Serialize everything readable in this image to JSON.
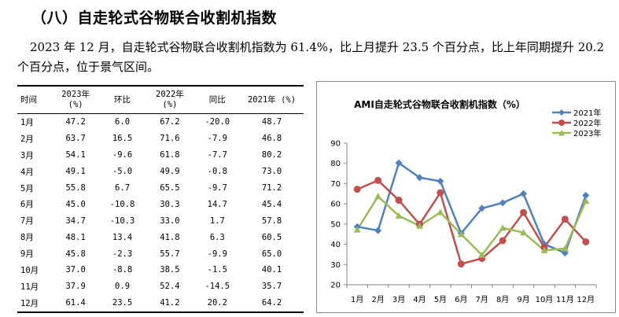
{
  "section": {
    "heading": "（八）自走轮式谷物联合收割机指数",
    "paragraph": "2023 年 12 月，自走轮式谷物联合收割机指数为 61.4%，比上月提升 23.5 个百分点，比上年同期提升 20.2 个百分点，位于景气区间。"
  },
  "table": {
    "headers": [
      {
        "line1": "时间",
        "line2": ""
      },
      {
        "line1": "2023年",
        "line2": "(%)"
      },
      {
        "line1": "环比",
        "line2": ""
      },
      {
        "line1": "2022年",
        "line2": "(%)"
      },
      {
        "line1": "同比",
        "line2": ""
      },
      {
        "line1": "2021年 (%)",
        "line2": ""
      }
    ],
    "rows": [
      [
        "1月",
        "47.2",
        "6.0",
        "67.2",
        "-20.0",
        "48.7"
      ],
      [
        "2月",
        "63.7",
        "16.5",
        "71.6",
        "-7.9",
        "46.8"
      ],
      [
        "3月",
        "54.1",
        "-9.6",
        "61.8",
        "-7.7",
        "80.2"
      ],
      [
        "4月",
        "49.1",
        "-5.0",
        "49.9",
        "-0.8",
        "73.0"
      ],
      [
        "5月",
        "55.8",
        "6.7",
        "65.5",
        "-9.7",
        "71.2"
      ],
      [
        "6月",
        "45.0",
        "-10.8",
        "30.3",
        "14.7",
        "45.4"
      ],
      [
        "7月",
        "34.7",
        "-10.3",
        "33.0",
        "1.7",
        "57.8"
      ],
      [
        "8月",
        "48.1",
        "13.4",
        "41.8",
        "6.3",
        "60.5"
      ],
      [
        "9月",
        "45.8",
        "-2.3",
        "55.7",
        "-9.9",
        "65.0"
      ],
      [
        "10月",
        "37.0",
        "-8.8",
        "38.5",
        "-1.5",
        "40.1"
      ],
      [
        "11月",
        "37.9",
        "0.9",
        "52.4",
        "-14.5",
        "35.7"
      ],
      [
        "12月",
        "61.4",
        "23.5",
        "41.2",
        "20.2",
        "64.2"
      ]
    ]
  },
  "chart_data": {
    "type": "line",
    "title": "AMI自走轮式谷物联合收割机指数（%）",
    "categories": [
      "1月",
      "2月",
      "3月",
      "4月",
      "5月",
      "6月",
      "7月",
      "8月",
      "9月",
      "10月",
      "11月",
      "12月"
    ],
    "series": [
      {
        "name": "2021年",
        "color": "#4f81bd",
        "marker": "diamond",
        "values": [
          48.7,
          46.8,
          80.2,
          73.0,
          71.2,
          45.4,
          57.8,
          60.5,
          65.0,
          40.1,
          35.7,
          64.2
        ]
      },
      {
        "name": "2022年",
        "color": "#c0504d",
        "marker": "circle",
        "values": [
          67.2,
          71.6,
          61.8,
          49.9,
          65.5,
          30.3,
          33.0,
          41.8,
          55.7,
          38.5,
          52.4,
          41.2
        ]
      },
      {
        "name": "2023年",
        "color": "#9bbb59",
        "marker": "triangle",
        "values": [
          47.2,
          63.7,
          54.1,
          49.1,
          55.8,
          45.0,
          34.7,
          48.1,
          45.8,
          37.0,
          37.9,
          61.4
        ]
      }
    ],
    "yticks": [
      "20",
      "30",
      "40",
      "50",
      "60",
      "70",
      "80",
      "90"
    ],
    "ylim": [
      20,
      90
    ],
    "grid": false,
    "legend": "top-right"
  }
}
